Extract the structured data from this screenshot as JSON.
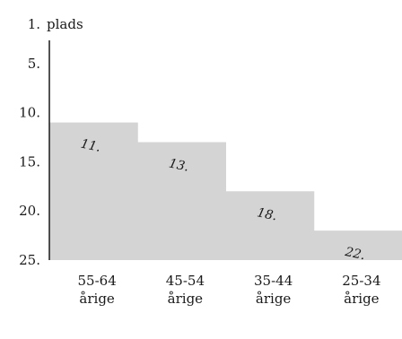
{
  "chart_data": {
    "type": "bar",
    "title": "",
    "ylabel": "plads",
    "xlabel": "",
    "y_reversed": true,
    "ylim": [
      1,
      25
    ],
    "yticks": [
      {
        "value": 1,
        "label": "1."
      },
      {
        "value": 5,
        "label": "5."
      },
      {
        "value": 10,
        "label": "10."
      },
      {
        "value": 15,
        "label": "15."
      },
      {
        "value": 20,
        "label": "20."
      },
      {
        "value": 25,
        "label": "25."
      }
    ],
    "categories": [
      {
        "line1": "55-64",
        "line2": "årige"
      },
      {
        "line1": "45-54",
        "line2": "årige"
      },
      {
        "line1": "35-44",
        "line2": "årige"
      },
      {
        "line1": "25-34",
        "line2": "årige"
      }
    ],
    "values": [
      11,
      13,
      18,
      22
    ],
    "data_labels": [
      "11.",
      "13.",
      "18.",
      "22."
    ],
    "bar_color": "#d4d4d4",
    "axis_color": "#1a1a1a"
  }
}
